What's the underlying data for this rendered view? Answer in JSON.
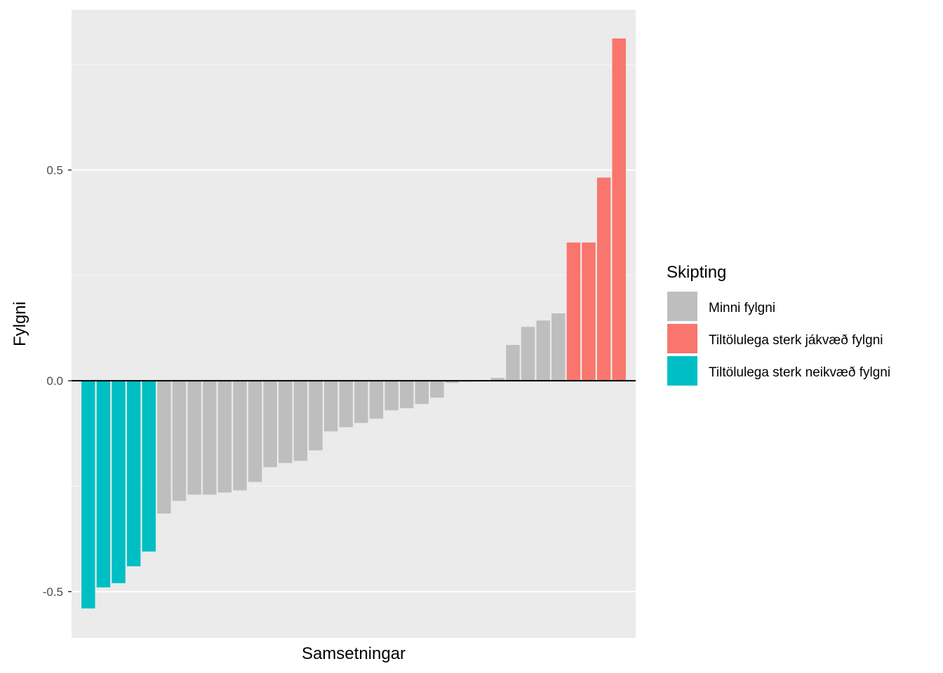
{
  "chart_data": {
    "type": "bar",
    "title": "",
    "xlabel": "Samsetningar",
    "ylabel": "Fylgni",
    "ylim": [
      -0.61,
      0.88
    ],
    "y_ticks": [
      -0.5,
      0.0,
      0.5
    ],
    "y_tick_labels": [
      "-0.5",
      "0.0",
      "0.5"
    ],
    "grid": true,
    "zero_line": true,
    "x_tick_labels_shown": false,
    "legend": {
      "title": "Skipting",
      "position": "right",
      "entries": [
        {
          "key": "minni",
          "label": "Minni fylgni",
          "color": "#BEBEBE"
        },
        {
          "key": "jakvaed",
          "label": "Tiltölulega sterk jákvæð fylgni",
          "color": "#F8766D"
        },
        {
          "key": "neikvaed",
          "label": "Tiltölulega sterk neikvæð fylgni",
          "color": "#00BFC4"
        }
      ]
    },
    "colors": {
      "panel_background": "#EBEBEB",
      "grid_major": "#FFFFFF",
      "grid_minor": "#F5F5F5",
      "zero_line": "#000000"
    },
    "values": [
      -0.54,
      -0.49,
      -0.48,
      -0.44,
      -0.405,
      -0.315,
      -0.285,
      -0.27,
      -0.27,
      -0.265,
      -0.26,
      -0.24,
      -0.205,
      -0.195,
      -0.19,
      -0.165,
      -0.12,
      -0.11,
      -0.1,
      -0.09,
      -0.07,
      -0.065,
      -0.055,
      -0.04,
      -0.005,
      -0.002,
      0.0,
      0.007,
      0.085,
      0.128,
      0.143,
      0.16,
      0.328,
      0.328,
      0.482,
      0.812
    ],
    "groups": [
      "neikvaed",
      "neikvaed",
      "neikvaed",
      "neikvaed",
      "neikvaed",
      "minni",
      "minni",
      "minni",
      "minni",
      "minni",
      "minni",
      "minni",
      "minni",
      "minni",
      "minni",
      "minni",
      "minni",
      "minni",
      "minni",
      "minni",
      "minni",
      "minni",
      "minni",
      "minni",
      "minni",
      "minni",
      "minni",
      "minni",
      "minni",
      "minni",
      "minni",
      "minni",
      "jakvaed",
      "jakvaed",
      "jakvaed",
      "jakvaed"
    ]
  }
}
